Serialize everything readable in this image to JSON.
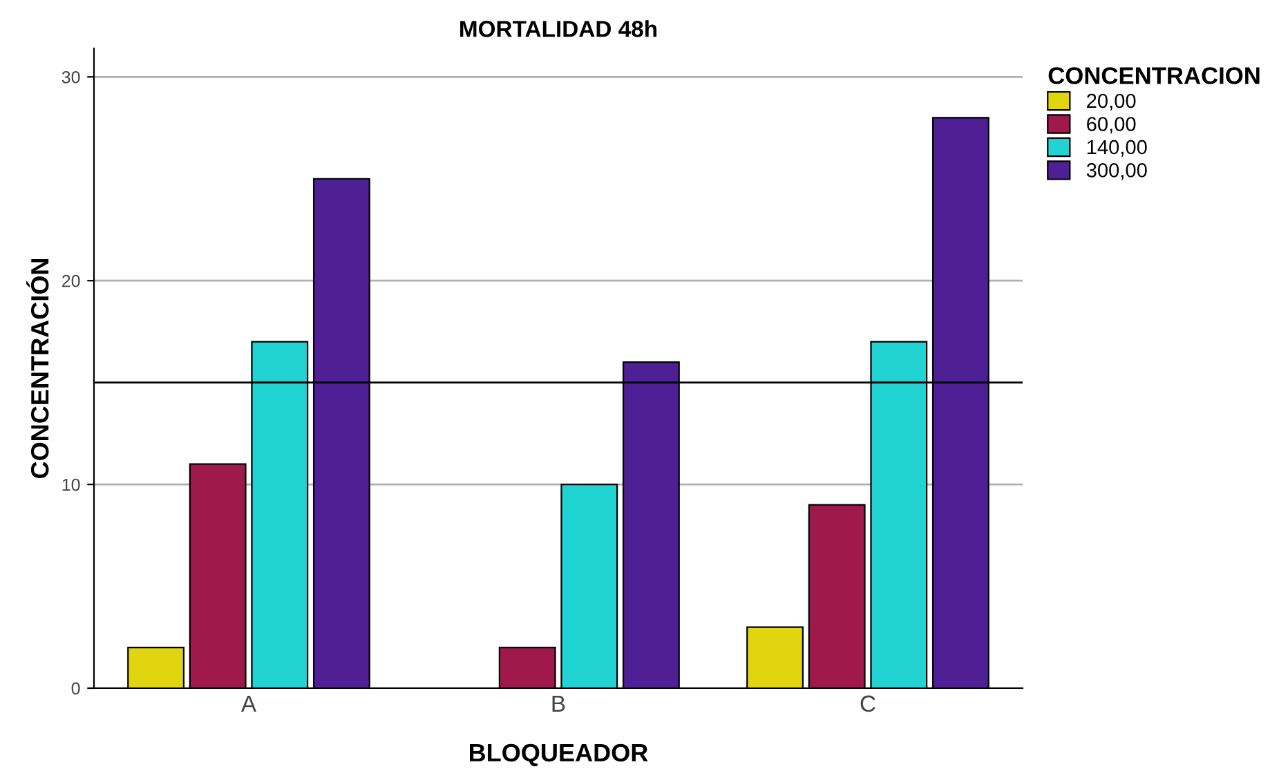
{
  "chart_data": {
    "type": "bar",
    "title": "MORTALIDAD 48h",
    "xlabel": "BLOQUEADOR",
    "ylabel": "CONCENTRACIÓN",
    "legend_title": "CONCENTRACION",
    "categories": [
      "A",
      "B",
      "C"
    ],
    "series": [
      {
        "name": "20,00",
        "color": "#e1d50f",
        "values": [
          2,
          null,
          3
        ]
      },
      {
        "name": "60,00",
        "color": "#a0194b",
        "values": [
          11,
          2,
          9
        ]
      },
      {
        "name": "140,00",
        "color": "#22d3d3",
        "values": [
          17,
          10,
          17
        ]
      },
      {
        "name": "300,00",
        "color": "#4f1f96",
        "values": [
          25,
          16,
          28
        ]
      }
    ],
    "ylim": [
      0,
      31.4
    ],
    "yticks": [
      0,
      10,
      20,
      30
    ],
    "grid": "y",
    "legend": "top right",
    "ref_lines": [
      {
        "axis": "y",
        "value": 15,
        "color": "#000000"
      }
    ]
  }
}
